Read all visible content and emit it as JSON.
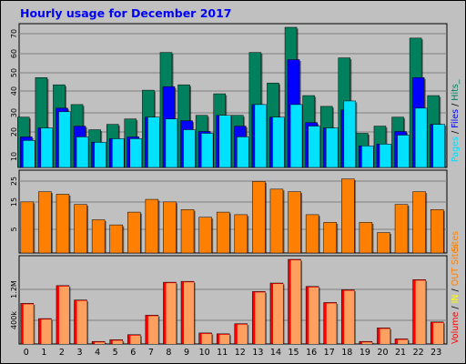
{
  "title": "Hourly usage for December 2017",
  "colors": {
    "background": "#c0c0c0",
    "plot": "#c0c0c0",
    "grid": "#7f7f7f",
    "title": "#0000ff",
    "hits": "#00805c",
    "files": "#0000ff",
    "pages": "#00e0ff",
    "sites": "#ff8000",
    "kbytes": "#ff0000",
    "visits_in": "#ffff00",
    "visits_out": "#ff8000",
    "volume_fill": "#ffa060"
  },
  "chart_data": [
    {
      "type": "bar",
      "panel": "hits_files_pages",
      "ylabel_parts": [
        "Pages",
        " / ",
        "Files",
        " / ",
        "Hits",
        "_"
      ],
      "ticks": [
        "10",
        "20",
        "30",
        "40",
        "50",
        "60",
        "70"
      ],
      "ylim": [
        0,
        78
      ],
      "categories": [
        "0",
        "1",
        "2",
        "3",
        "4",
        "5",
        "6",
        "7",
        "8",
        "9",
        "10",
        "11",
        "12",
        "13",
        "14",
        "15",
        "16",
        "17",
        "18",
        "19",
        "20",
        "21",
        "22",
        "23"
      ],
      "series": [
        {
          "name": "Hits",
          "values": [
            28,
            50,
            46,
            35,
            21,
            24,
            27,
            43,
            64,
            46,
            29,
            41,
            29,
            64,
            47,
            78,
            40,
            34,
            61,
            19,
            23,
            28,
            72,
            40
          ]
        },
        {
          "name": "Files",
          "values": [
            17,
            22,
            33,
            23,
            14,
            16,
            17,
            28,
            45,
            26,
            20,
            29,
            23,
            35,
            28,
            60,
            25,
            22,
            32,
            12,
            13,
            20,
            50,
            24
          ]
        },
        {
          "name": "Pages",
          "values": [
            15,
            22,
            31,
            17,
            14,
            16,
            16,
            28,
            27,
            21,
            19,
            29,
            17,
            35,
            28,
            35,
            23,
            22,
            37,
            12,
            13,
            18,
            33,
            24
          ]
        }
      ]
    },
    {
      "type": "bar",
      "panel": "sites",
      "ylabel": "Sites",
      "ticks": [
        "5",
        "15",
        "25"
      ],
      "ylim": [
        0,
        31
      ],
      "categories": [
        "0",
        "1",
        "2",
        "3",
        "4",
        "5",
        "6",
        "7",
        "8",
        "9",
        "10",
        "11",
        "12",
        "13",
        "14",
        "15",
        "16",
        "17",
        "18",
        "19",
        "20",
        "21",
        "22",
        "23"
      ],
      "series": [
        {
          "name": "Sites",
          "values": [
            20,
            24,
            23,
            19,
            13,
            11,
            16,
            21,
            20,
            17,
            14,
            16,
            15,
            28,
            25,
            24,
            15,
            12,
            29,
            12,
            8,
            19,
            24,
            17
          ]
        }
      ]
    },
    {
      "type": "bar",
      "panel": "volume",
      "ylabel_parts": [
        "Volume",
        " / ",
        "IN",
        " / ",
        "OUT",
        "  ",
        "Sites"
      ],
      "ticks": [
        "400k",
        "1.2M"
      ],
      "ylim": [
        0,
        1000
      ],
      "categories": [
        "0",
        "1",
        "2",
        "3",
        "4",
        "5",
        "6",
        "7",
        "8",
        "9",
        "10",
        "11",
        "12",
        "13",
        "14",
        "15",
        "16",
        "17",
        "18",
        "19",
        "20",
        "21",
        "22",
        "23"
      ],
      "series": [
        {
          "name": "Volume",
          "values": [
            480,
            300,
            690,
            520,
            30,
            50,
            110,
            340,
            730,
            740,
            130,
            120,
            240,
            620,
            720,
            1000,
            680,
            490,
            640,
            30,
            190,
            60,
            760,
            260
          ]
        }
      ]
    }
  ],
  "hours": [
    "0",
    "1",
    "2",
    "3",
    "4",
    "5",
    "6",
    "7",
    "8",
    "9",
    "10",
    "11",
    "12",
    "13",
    "14",
    "15",
    "16",
    "17",
    "18",
    "19",
    "20",
    "21",
    "22",
    "23"
  ]
}
